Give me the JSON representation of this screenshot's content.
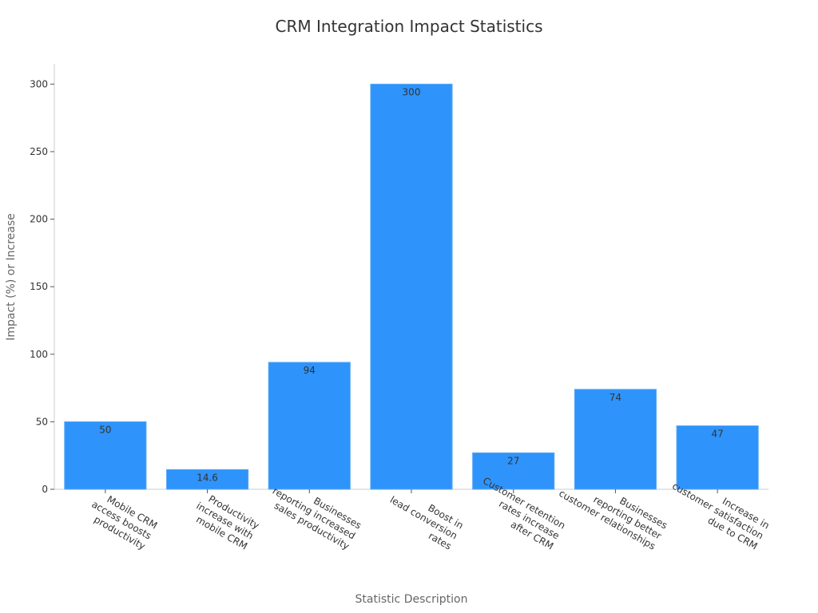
{
  "chart_data": {
    "type": "bar",
    "title": "CRM Integration Impact Statistics",
    "xlabel": "Statistic Description",
    "ylabel": "Impact (%) or Increase",
    "ylim": [
      0,
      315
    ],
    "yticks": [
      0,
      50,
      100,
      150,
      200,
      250,
      300
    ],
    "categories": [
      [
        "Mobile CRM",
        "access boosts",
        "productivity"
      ],
      [
        "Productivity",
        "increase with",
        "mobile CRM"
      ],
      [
        "Businesses",
        "reporting increased",
        "sales productivity"
      ],
      [
        "Boost in",
        "lead conversion",
        "rates"
      ],
      [
        "Customer retention",
        "rates increase",
        "after CRM"
      ],
      [
        "Businesses",
        "reporting better",
        "customer relationships"
      ],
      [
        "Increase in",
        "customer satisfaction",
        "due to CRM"
      ]
    ],
    "values": [
      50,
      14.6,
      94,
      300,
      27,
      74,
      47
    ],
    "value_labels": [
      "50",
      "14.6",
      "94",
      "300",
      "27",
      "74",
      "47"
    ],
    "bar_color": "#2e93fa",
    "grid": false,
    "legend": "none"
  }
}
